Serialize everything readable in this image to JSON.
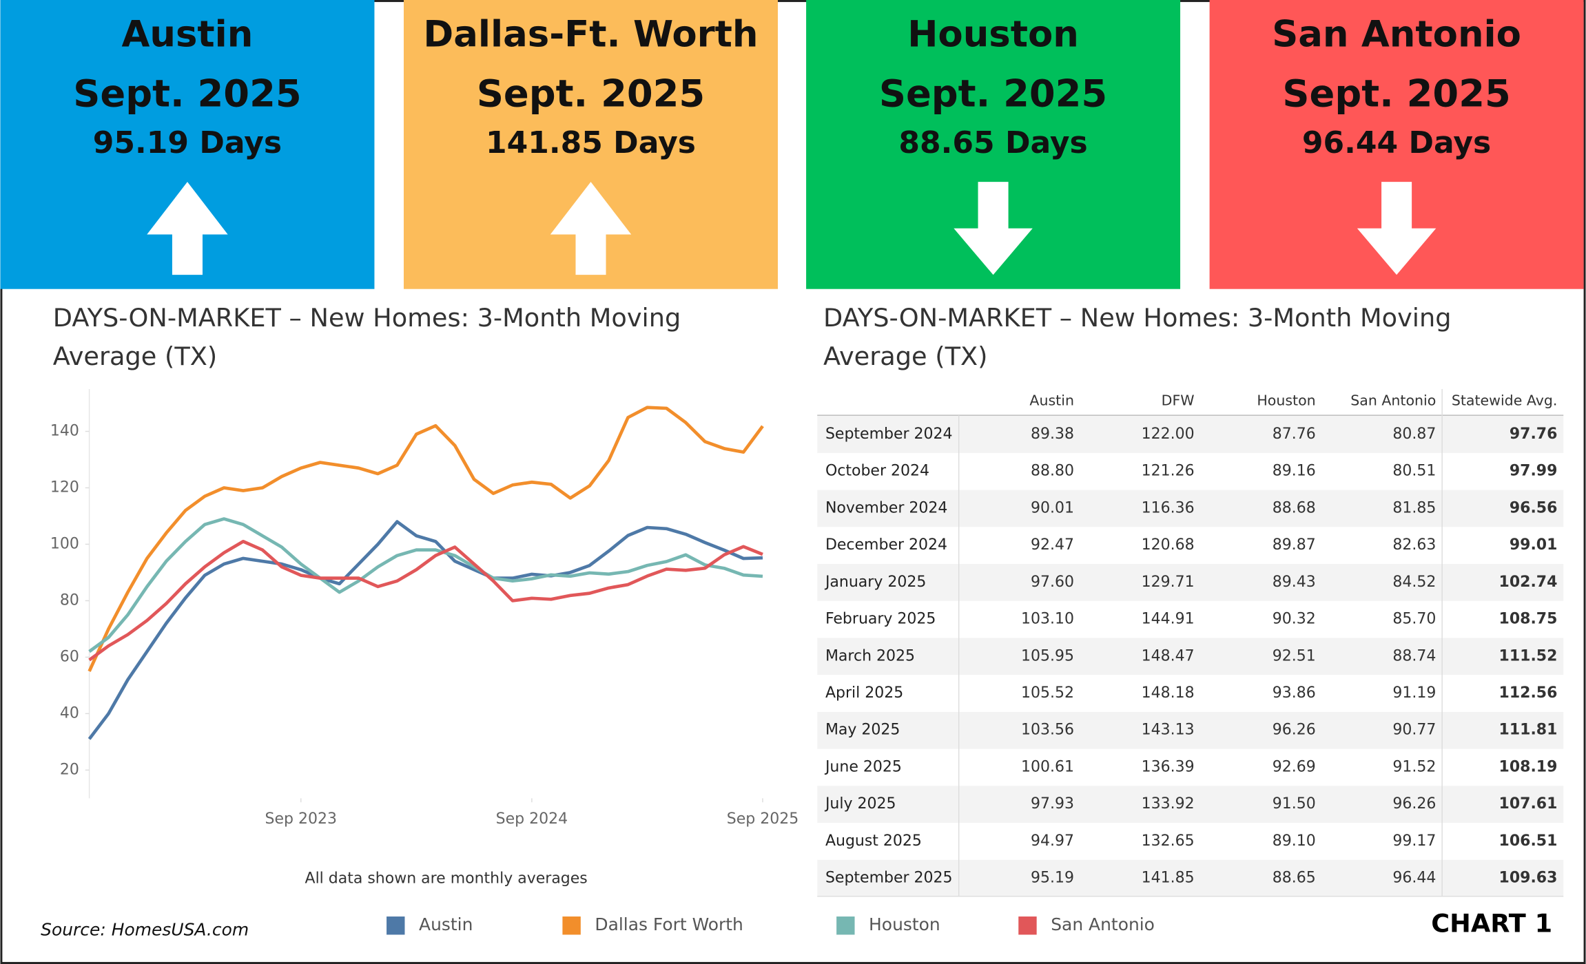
{
  "header_cards": [
    {
      "city": "Austin",
      "period": "Sept. 2025",
      "value": "95.19 Days",
      "trend": "up",
      "color": "#009de0"
    },
    {
      "city": "Dallas-Ft. Worth",
      "period": "Sept. 2025",
      "value": "141.85 Days",
      "trend": "up",
      "color": "#fcbc5a"
    },
    {
      "city": "Houston",
      "period": "Sept. 2025",
      "value": "88.65 Days",
      "trend": "down",
      "color": "#00bf5b"
    },
    {
      "city": "San Antonio",
      "period": "Sept. 2025",
      "value": "96.44 Days",
      "trend": "down",
      "color": "#ff5757"
    }
  ],
  "chart_data": {
    "type": "line",
    "title": [
      "DAYS-ON-MARKET – New Homes: 3-Month Moving",
      "Average (TX)"
    ],
    "note": "All data shown are monthly averages",
    "x": [
      "Oct 2022",
      "Nov 2022",
      "Dec 2022",
      "Jan 2023",
      "Feb 2023",
      "Mar 2023",
      "Apr 2023",
      "May 2023",
      "Jun 2023",
      "Jul 2023",
      "Aug 2023",
      "Sep 2023",
      "Oct 2023",
      "Nov 2023",
      "Dec 2023",
      "Jan 2024",
      "Feb 2024",
      "Mar 2024",
      "Apr 2024",
      "May 2024",
      "Jun 2024",
      "Jul 2024",
      "Aug 2024",
      "Sep 2024",
      "Oct 2024",
      "Nov 2024",
      "Dec 2024",
      "Jan 2025",
      "Feb 2025",
      "Mar 2025",
      "Apr 2025",
      "May 2025",
      "Jun 2025",
      "Jul 2025",
      "Aug 2025",
      "Sep 2025"
    ],
    "xticks": [
      "Sep 2023",
      "Sep 2024",
      "Sep 2025"
    ],
    "ylim": [
      10,
      155
    ],
    "yticks": [
      20,
      40,
      60,
      80,
      100,
      120,
      140
    ],
    "series": [
      {
        "name": "Austin",
        "color": "#4e79a7",
        "values": [
          31,
          40,
          52,
          62,
          72,
          81,
          89,
          93,
          95,
          94,
          93,
          91,
          88,
          86,
          93,
          100,
          108,
          103,
          101,
          94,
          91,
          88,
          88,
          89.38,
          88.8,
          90.01,
          92.47,
          97.6,
          103.1,
          105.95,
          105.52,
          103.56,
          100.61,
          97.93,
          94.97,
          95.19
        ]
      },
      {
        "name": "Dallas Fort Worth",
        "color": "#f28e2b",
        "values": [
          55,
          70,
          83,
          95,
          104,
          112,
          117,
          120,
          119,
          120,
          124,
          127,
          129,
          128,
          127,
          125,
          128,
          139,
          142,
          135,
          123,
          118,
          121,
          122.0,
          121.26,
          116.36,
          120.68,
          129.71,
          144.91,
          148.47,
          148.18,
          143.13,
          136.39,
          133.92,
          132.65,
          141.85
        ]
      },
      {
        "name": "Houston",
        "color": "#76b7b2",
        "values": [
          62,
          67,
          75,
          85,
          94,
          101,
          107,
          109,
          107,
          103,
          99,
          93,
          88,
          83,
          87,
          92,
          96,
          98,
          98,
          96,
          92,
          88,
          87,
          87.76,
          89.16,
          88.68,
          89.87,
          89.43,
          90.32,
          92.51,
          93.86,
          96.26,
          92.69,
          91.5,
          89.1,
          88.65
        ]
      },
      {
        "name": "San Antonio",
        "color": "#e15759",
        "values": [
          59,
          64,
          68,
          73,
          79,
          86,
          92,
          97,
          101,
          98,
          92,
          89,
          88,
          88,
          88,
          85,
          87,
          91,
          96,
          99,
          93,
          87,
          80,
          80.87,
          80.51,
          81.85,
          82.63,
          84.52,
          85.7,
          88.74,
          91.19,
          90.77,
          91.52,
          96.26,
          99.17,
          96.44
        ]
      }
    ]
  },
  "table": {
    "title": [
      "DAYS-ON-MARKET – New Homes:  3-Month Moving",
      "Average (TX)"
    ],
    "columns": [
      "Austin",
      "DFW",
      "Houston",
      "San Antonio",
      "Statewide Avg."
    ],
    "rows": [
      [
        "September 2024",
        "89.38",
        "122.00",
        "87.76",
        "80.87",
        "97.76"
      ],
      [
        "October 2024",
        "88.80",
        "121.26",
        "89.16",
        "80.51",
        "97.99"
      ],
      [
        "November 2024",
        "90.01",
        "116.36",
        "88.68",
        "81.85",
        "96.56"
      ],
      [
        "December 2024",
        "92.47",
        "120.68",
        "89.87",
        "82.63",
        "99.01"
      ],
      [
        "January 2025",
        "97.60",
        "129.71",
        "89.43",
        "84.52",
        "102.74"
      ],
      [
        "February 2025",
        "103.10",
        "144.91",
        "90.32",
        "85.70",
        "108.75"
      ],
      [
        "March 2025",
        "105.95",
        "148.47",
        "92.51",
        "88.74",
        "111.52"
      ],
      [
        "April 2025",
        "105.52",
        "148.18",
        "93.86",
        "91.19",
        "112.56"
      ],
      [
        "May 2025",
        "103.56",
        "143.13",
        "96.26",
        "90.77",
        "111.81"
      ],
      [
        "June 2025",
        "100.61",
        "136.39",
        "92.69",
        "91.52",
        "108.19"
      ],
      [
        "July 2025",
        "97.93",
        "133.92",
        "91.50",
        "96.26",
        "107.61"
      ],
      [
        "August 2025",
        "94.97",
        "132.65",
        "89.10",
        "99.17",
        "106.51"
      ],
      [
        "September 2025",
        "95.19",
        "141.85",
        "88.65",
        "96.44",
        "109.63"
      ]
    ]
  },
  "footer": {
    "source": "Source: HomesUSA.com",
    "label": "CHART 1"
  }
}
